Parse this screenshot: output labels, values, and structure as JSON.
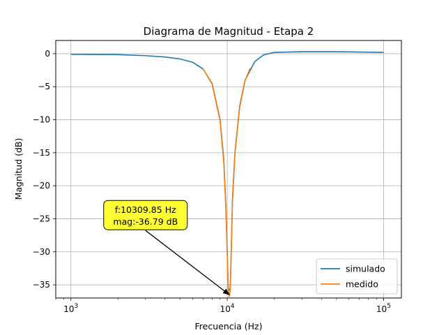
{
  "chart_data": {
    "type": "line",
    "title": "Diagrama de Magnitud - Etapa 2",
    "xlabel": "Frecuencia (Hz)",
    "ylabel": "Magnitud (dB)",
    "xscale": "log",
    "xlim": [
      800,
      130000
    ],
    "ylim": [
      -37,
      2
    ],
    "grid": true,
    "legend_position": "bottom-right",
    "x_ticks": [
      {
        "value": 1000,
        "base": "10",
        "exp": "3"
      },
      {
        "value": 10000,
        "base": "10",
        "exp": "4"
      },
      {
        "value": 100000,
        "base": "10",
        "exp": "5"
      }
    ],
    "y_ticks": [
      {
        "value": 0,
        "label": "0"
      },
      {
        "value": -5,
        "label": "−5"
      },
      {
        "value": -10,
        "label": "−10"
      },
      {
        "value": -15,
        "label": "−15"
      },
      {
        "value": -20,
        "label": "−20"
      },
      {
        "value": -25,
        "label": "−25"
      },
      {
        "value": -30,
        "label": "−30"
      },
      {
        "value": -35,
        "label": "−35"
      }
    ],
    "series": [
      {
        "name": "simulado",
        "color": "#1f77b4",
        "points": [
          [
            1000,
            -0.1
          ],
          [
            2000,
            -0.15
          ],
          [
            3000,
            -0.3
          ],
          [
            4000,
            -0.5
          ],
          [
            5000,
            -0.8
          ],
          [
            6000,
            -1.3
          ],
          [
            7000,
            -2.3
          ],
          [
            8000,
            -4.5
          ],
          [
            9000,
            -10
          ],
          [
            9500,
            -16
          ],
          [
            9800,
            -23
          ],
          [
            10000,
            -30
          ],
          [
            10150,
            -35.5
          ],
          [
            10300,
            -35.8
          ],
          [
            10450,
            -35.5
          ],
          [
            10600,
            -30
          ],
          [
            10800,
            -22
          ],
          [
            11200,
            -15
          ],
          [
            12000,
            -8
          ],
          [
            13000,
            -4
          ],
          [
            15000,
            -1.2
          ],
          [
            17000,
            -0.2
          ],
          [
            20000,
            0.2
          ],
          [
            30000,
            0.3
          ],
          [
            50000,
            0.3
          ],
          [
            100000,
            0.2
          ]
        ]
      },
      {
        "name": "medido",
        "color": "#ff7f0e",
        "points": [
          [
            7000,
            -2.3
          ],
          [
            8000,
            -4.6
          ],
          [
            9000,
            -10.2
          ],
          [
            9500,
            -16.5
          ],
          [
            9800,
            -23.5
          ],
          [
            10000,
            -30.5
          ],
          [
            10150,
            -35.8
          ],
          [
            10309.85,
            -36.79
          ],
          [
            10450,
            -35.8
          ],
          [
            10600,
            -30.5
          ],
          [
            10800,
            -22.5
          ],
          [
            11200,
            -15.2
          ],
          [
            12000,
            -8.2
          ],
          [
            13000,
            -4.1
          ],
          [
            14000,
            -2.2
          ]
        ]
      }
    ],
    "annotation": {
      "text_lines": [
        "f:10309.85 Hz",
        "mag:-36.79 dB"
      ],
      "point": [
        10309.85,
        -36.5
      ],
      "text_anchor": [
        3000,
        -25.5
      ],
      "box_color": "#ffff33"
    }
  }
}
